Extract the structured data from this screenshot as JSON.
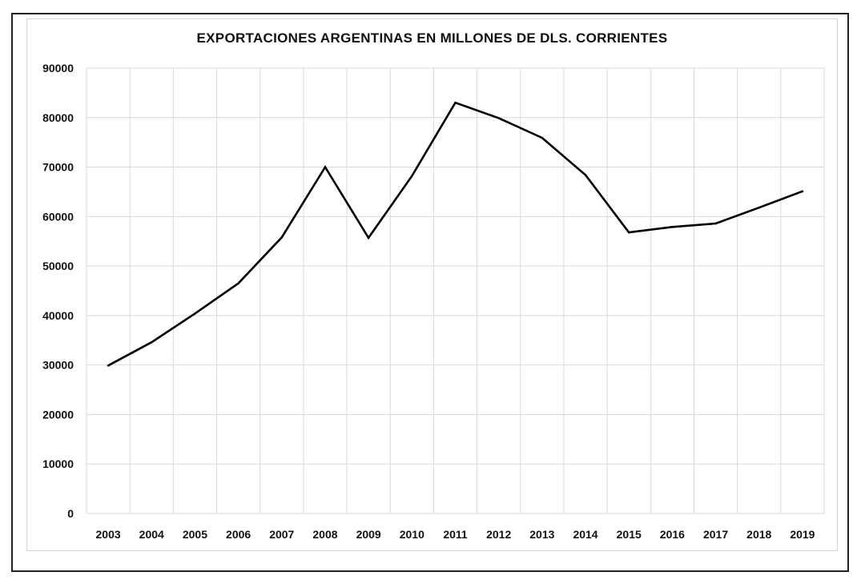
{
  "chart_data": {
    "type": "line",
    "title": "EXPORTACIONES ARGENTINAS  EN MILLONES  DE  DLS.  CORRIENTES",
    "xlabel": "",
    "ylabel": "",
    "categories": [
      "2003",
      "2004",
      "2005",
      "2006",
      "2007",
      "2008",
      "2009",
      "2010",
      "2011",
      "2012",
      "2013",
      "2014",
      "2015",
      "2016",
      "2017",
      "2018",
      "2019"
    ],
    "series": [
      {
        "values": [
          29900,
          34600,
          40400,
          46500,
          55800,
          70000,
          55700,
          68200,
          83000,
          79900,
          75900,
          68400,
          56800,
          57900,
          58600,
          61800,
          65100
        ]
      }
    ],
    "ylim": [
      0,
      90000
    ],
    "yticks": [
      "0",
      "10000",
      "20000",
      "30000",
      "40000",
      "50000",
      "60000",
      "70000",
      "80000",
      "90000"
    ],
    "grid": true,
    "legend": "none",
    "colors": {
      "line": "#000000",
      "grid": "#d9d9d9",
      "text": "#111111"
    }
  }
}
